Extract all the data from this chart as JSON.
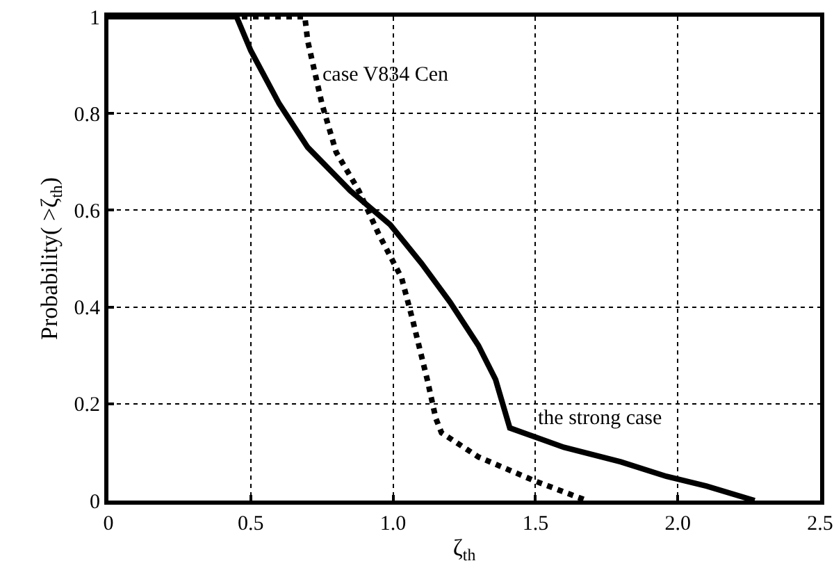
{
  "chart_data": {
    "type": "line",
    "xlabel": "ζ$_{th}$",
    "ylabel": "Probability( >ζ$_{th}$)",
    "xlim": [
      0,
      2.5
    ],
    "ylim": [
      0,
      1
    ],
    "xticks": [
      0,
      0.5,
      {
        "value": 1,
        "label": "1.0"
      },
      1.5,
      {
        "value": 2,
        "label": "2.0"
      },
      2.5
    ],
    "yticks": [
      0,
      0.2,
      0.4,
      0.6,
      0.8,
      1
    ],
    "grid": true,
    "legend": false,
    "series": [
      {
        "name": "the strong case",
        "color": "#000000",
        "line_style": "solid",
        "x": [
          0,
          0.45,
          0.5,
          0.6,
          0.7,
          0.85,
          0.99,
          1.1,
          1.2,
          1.3,
          1.36,
          1.41,
          1.6,
          1.8,
          1.96,
          2.1,
          2.27
        ],
        "values": [
          1,
          1,
          0.93,
          0.82,
          0.73,
          0.64,
          0.57,
          0.49,
          0.41,
          0.32,
          0.25,
          0.15,
          0.11,
          0.08,
          0.05,
          0.03,
          0
        ]
      },
      {
        "name": "case V834 Cen",
        "color": "#000000",
        "line_style": "dotted",
        "x": [
          0,
          0.69,
          0.7,
          0.75,
          0.8,
          0.88,
          0.95,
          1.03,
          1.07,
          1.12,
          1.15,
          1.17,
          1.3,
          1.5,
          1.68
        ],
        "values": [
          1,
          1,
          0.95,
          0.82,
          0.72,
          0.64,
          0.55,
          0.46,
          0.37,
          0.25,
          0.17,
          0.14,
          0.09,
          0.04,
          0
        ]
      }
    ]
  }
}
